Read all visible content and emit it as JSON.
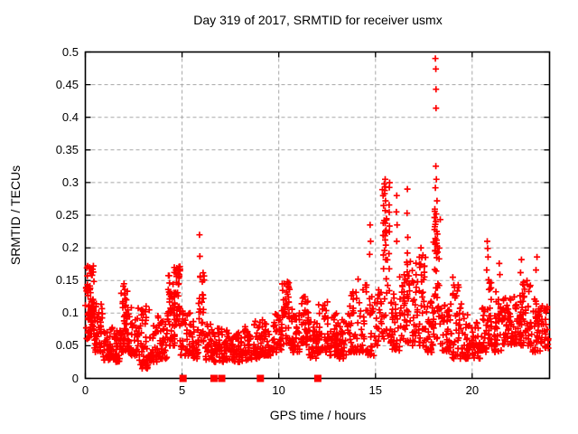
{
  "window": {
    "background": "#ffffff"
  },
  "chart_data": {
    "type": "scatter",
    "title": "Day 319 of 2017, SRMTID for receiver usmx",
    "xlabel": "GPS time / hours",
    "ylabel": "SRMTID / TECUs",
    "xlim": [
      0,
      24
    ],
    "ylim": [
      0,
      0.5
    ],
    "xticks": [
      0,
      5,
      10,
      15,
      20
    ],
    "xtick_labels": [
      "0",
      "5",
      "10",
      "15",
      "20"
    ],
    "yticks": [
      0,
      0.05,
      0.1,
      0.15,
      0.2,
      0.25,
      0.3,
      0.35,
      0.4,
      0.45,
      0.5
    ],
    "ytick_labels": [
      "0",
      "0.05",
      "0.1",
      "0.15",
      "0.2",
      "0.25",
      "0.3",
      "0.35",
      "0.4",
      "0.45",
      "0.5"
    ],
    "grid": {
      "visible": true,
      "style": "dashed",
      "color": "#a8a8a8"
    },
    "legend": "none",
    "marker_color": "#ff0000",
    "axis_color": "#000000",
    "series": [
      {
        "name": "srmtid",
        "marker": "plus",
        "color": "#ff0000",
        "seed": 1234567,
        "peak_points": [
          [
            0.12,
            0.172
          ],
          [
            0.2,
            0.168
          ],
          [
            0.35,
            0.158
          ],
          [
            2.0,
            0.145
          ],
          [
            2.04,
            0.136
          ],
          [
            3.3,
            0.105
          ],
          [
            4.6,
            0.17
          ],
          [
            4.68,
            0.166
          ],
          [
            5.9,
            0.22
          ],
          [
            5.92,
            0.187
          ],
          [
            10.45,
            0.148
          ],
          [
            10.52,
            0.139
          ],
          [
            11.3,
            0.125
          ],
          [
            14.1,
            0.152
          ],
          [
            14.72,
            0.235
          ],
          [
            14.75,
            0.21
          ],
          [
            14.7,
            0.19
          ],
          [
            15.5,
            0.305
          ],
          [
            15.48,
            0.288
          ],
          [
            15.52,
            0.272
          ],
          [
            15.5,
            0.257
          ],
          [
            15.45,
            0.242
          ],
          [
            15.55,
            0.227
          ],
          [
            15.5,
            0.212
          ],
          [
            15.47,
            0.196
          ],
          [
            15.53,
            0.182
          ],
          [
            15.42,
            0.168
          ],
          [
            16.1,
            0.28
          ],
          [
            16.08,
            0.255
          ],
          [
            16.12,
            0.235
          ],
          [
            16.1,
            0.21
          ],
          [
            16.65,
            0.29
          ],
          [
            16.63,
            0.253
          ],
          [
            16.67,
            0.216
          ],
          [
            16.65,
            0.192
          ],
          [
            16.62,
            0.178
          ],
          [
            16.68,
            0.157
          ],
          [
            17.35,
            0.2
          ],
          [
            17.4,
            0.185
          ],
          [
            18.1,
            0.49
          ],
          [
            18.12,
            0.474
          ],
          [
            18.13,
            0.443
          ],
          [
            18.13,
            0.414
          ],
          [
            18.12,
            0.325
          ],
          [
            18.15,
            0.305
          ],
          [
            18.1,
            0.292
          ],
          [
            18.18,
            0.272
          ],
          [
            18.14,
            0.252
          ],
          [
            18.1,
            0.236
          ],
          [
            18.2,
            0.221
          ],
          [
            18.16,
            0.207
          ],
          [
            18.08,
            0.195
          ],
          [
            19.0,
            0.155
          ],
          [
            19.05,
            0.143
          ],
          [
            20.78,
            0.21
          ],
          [
            20.8,
            0.199
          ],
          [
            20.82,
            0.186
          ],
          [
            20.75,
            0.166
          ],
          [
            20.85,
            0.151
          ],
          [
            21.4,
            0.176
          ],
          [
            21.43,
            0.159
          ],
          [
            22.55,
            0.182
          ],
          [
            22.5,
            0.162
          ],
          [
            23.35,
            0.186
          ],
          [
            23.3,
            0.166
          ]
        ],
        "cluster_bins": [
          [
            0.0,
            0.45,
            55,
            0.06,
            0.175,
            1.2
          ],
          [
            0.1,
            0.5,
            20,
            0.09,
            0.14,
            1.0
          ],
          [
            0.45,
            0.9,
            40,
            0.04,
            0.115,
            1.6
          ],
          [
            0.9,
            1.4,
            40,
            0.028,
            0.08,
            1.5
          ],
          [
            1.4,
            1.85,
            40,
            0.025,
            0.075,
            1.5
          ],
          [
            1.85,
            2.2,
            45,
            0.04,
            0.145,
            1.7
          ],
          [
            2.2,
            2.75,
            45,
            0.035,
            0.115,
            1.7
          ],
          [
            2.75,
            3.25,
            45,
            0.015,
            0.12,
            1.9
          ],
          [
            3.25,
            3.75,
            40,
            0.025,
            0.085,
            1.6
          ],
          [
            3.75,
            4.25,
            40,
            0.03,
            0.1,
            1.6
          ],
          [
            4.25,
            4.65,
            45,
            0.05,
            0.16,
            1.15
          ],
          [
            4.55,
            4.9,
            40,
            0.08,
            0.172,
            1.0
          ],
          [
            4.9,
            5.45,
            40,
            0.035,
            0.105,
            1.6
          ],
          [
            5.45,
            5.85,
            30,
            0.03,
            0.09,
            1.6
          ],
          [
            5.85,
            6.15,
            28,
            0.05,
            0.168,
            1.25
          ],
          [
            6.15,
            6.65,
            35,
            0.028,
            0.085,
            1.6
          ],
          [
            6.65,
            7.15,
            38,
            0.025,
            0.08,
            1.6
          ],
          [
            7.15,
            7.65,
            38,
            0.028,
            0.075,
            1.5
          ],
          [
            7.65,
            8.15,
            38,
            0.025,
            0.07,
            1.5
          ],
          [
            8.15,
            8.65,
            38,
            0.028,
            0.08,
            1.5
          ],
          [
            8.65,
            9.15,
            38,
            0.03,
            0.09,
            1.6
          ],
          [
            9.15,
            9.65,
            38,
            0.035,
            0.09,
            1.6
          ],
          [
            9.65,
            10.15,
            38,
            0.04,
            0.1,
            1.6
          ],
          [
            10.15,
            10.65,
            45,
            0.05,
            0.148,
            1.6
          ],
          [
            10.65,
            11.15,
            40,
            0.04,
            0.11,
            1.6
          ],
          [
            11.15,
            11.55,
            38,
            0.05,
            0.125,
            1.5
          ],
          [
            11.55,
            12.05,
            38,
            0.03,
            0.09,
            1.6
          ],
          [
            12.05,
            12.55,
            38,
            0.04,
            0.12,
            1.7
          ],
          [
            12.55,
            13.05,
            38,
            0.035,
            0.1,
            1.6
          ],
          [
            13.05,
            13.55,
            38,
            0.03,
            0.095,
            1.6
          ],
          [
            13.55,
            14.05,
            38,
            0.04,
            0.135,
            1.8
          ],
          [
            14.05,
            14.55,
            30,
            0.04,
            0.145,
            1.8
          ],
          [
            14.55,
            15.05,
            25,
            0.035,
            0.13,
            1.5
          ],
          [
            15.05,
            15.35,
            20,
            0.05,
            0.14,
            1.2
          ],
          [
            15.35,
            15.75,
            40,
            0.06,
            0.3,
            1.25
          ],
          [
            15.75,
            16.25,
            35,
            0.04,
            0.13,
            1.5
          ],
          [
            16.25,
            16.55,
            25,
            0.05,
            0.16,
            1.2
          ],
          [
            16.55,
            17.1,
            40,
            0.05,
            0.185,
            1.35
          ],
          [
            17.1,
            17.6,
            40,
            0.05,
            0.19,
            1.5
          ],
          [
            17.6,
            18.0,
            32,
            0.04,
            0.125,
            1.5
          ],
          [
            18.0,
            18.35,
            45,
            0.06,
            0.26,
            1.1
          ],
          [
            18.35,
            18.9,
            38,
            0.04,
            0.135,
            1.5
          ],
          [
            18.9,
            19.45,
            38,
            0.03,
            0.145,
            1.7
          ],
          [
            19.45,
            19.95,
            38,
            0.03,
            0.1,
            1.6
          ],
          [
            19.95,
            20.45,
            32,
            0.03,
            0.09,
            1.6
          ],
          [
            20.45,
            20.75,
            25,
            0.04,
            0.11,
            1.5
          ],
          [
            20.75,
            21.0,
            25,
            0.05,
            0.155,
            1.2
          ],
          [
            21.0,
            21.55,
            40,
            0.04,
            0.135,
            1.6
          ],
          [
            21.55,
            22.05,
            45,
            0.05,
            0.13,
            1.5
          ],
          [
            22.05,
            22.55,
            45,
            0.05,
            0.135,
            1.5
          ],
          [
            22.55,
            23.05,
            45,
            0.05,
            0.15,
            1.5
          ],
          [
            23.05,
            23.55,
            40,
            0.04,
            0.125,
            1.5
          ],
          [
            23.55,
            23.95,
            30,
            0.045,
            0.115,
            1.5
          ]
        ]
      },
      {
        "name": "zero-flags",
        "marker": "filled-square",
        "color": "#ff0000",
        "points": [
          [
            5.05,
            0
          ],
          [
            6.65,
            0
          ],
          [
            7.05,
            0
          ],
          [
            9.05,
            0
          ],
          [
            12.02,
            0
          ]
        ]
      }
    ]
  }
}
